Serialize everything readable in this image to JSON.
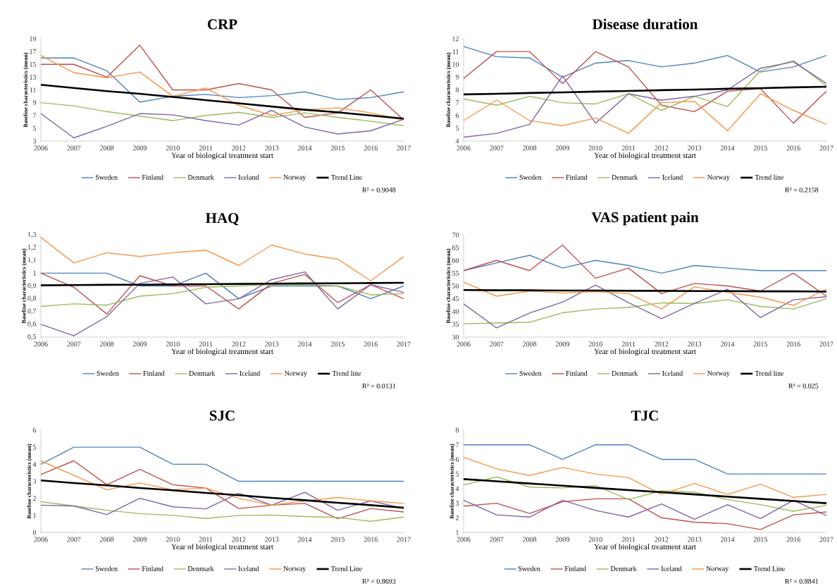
{
  "chart_data": [
    {
      "type": "line",
      "title": "CRP",
      "xlabel": "Year of biological treatment start",
      "ylabel": "Baseline characteristics (mean)",
      "x": [
        2006,
        2007,
        2008,
        2009,
        2010,
        2011,
        2012,
        2013,
        2014,
        2015,
        2016,
        2017
      ],
      "xlim": [
        2006,
        2017
      ],
      "xticks": [
        2006,
        2007,
        2008,
        2009,
        2010,
        2011,
        2012,
        2013,
        2014,
        2015,
        2016,
        2017
      ],
      "ylim": [
        3,
        19
      ],
      "yticks": [
        3,
        5,
        7,
        9,
        11,
        13,
        15,
        17,
        19
      ],
      "legend": "bottom",
      "annotations": [
        "R² = 0.9048"
      ],
      "series": [
        {
          "name": "Sweden",
          "color": "#4f81bd",
          "values": [
            16,
            16,
            14,
            9.1,
            10,
            10.3,
            9.8,
            10.1,
            10.7,
            9.5,
            9.8,
            10.7
          ]
        },
        {
          "name": "Finland",
          "color": "#c0504d",
          "values": [
            15,
            15,
            13,
            18,
            11,
            11,
            12,
            11,
            6.7,
            7.4,
            11,
            6.3
          ]
        },
        {
          "name": "Denmark",
          "color": "#9bbb59",
          "values": [
            9,
            8.5,
            7.6,
            6.9,
            6.2,
            7,
            7.5,
            6.7,
            7.4,
            6.7,
            6.1,
            5.4
          ]
        },
        {
          "name": "Iceland",
          "color": "#8064a2",
          "values": [
            7.3,
            3.5,
            5.3,
            7.3,
            7.1,
            6.2,
            5.5,
            7.8,
            5.2,
            4.1,
            4.6,
            6.4
          ]
        },
        {
          "name": "Norway",
          "color": "#f79646",
          "values": [
            16.4,
            13.7,
            12.9,
            13.8,
            10,
            11.3,
            8.6,
            7,
            7.9,
            8.2,
            7.4,
            6.3
          ]
        },
        {
          "name": "Trend Line",
          "type": "line",
          "color": "#000000",
          "x": [
            2006,
            2007,
            2008,
            2009,
            2010,
            2011,
            2012,
            2013,
            2014,
            2015,
            2016,
            2017
          ],
          "values": [
            11.8,
            11.3,
            10.8,
            10.4,
            9.9,
            9.4,
            8.9,
            8.4,
            7.9,
            7.5,
            7.0,
            6.5
          ]
        }
      ]
    },
    {
      "type": "line",
      "title": "Disease duration",
      "xlabel": "Year of biological treatment start",
      "ylabel": "Baseline characteristics (mean)",
      "x": [
        2006,
        2007,
        2008,
        2009,
        2010,
        2011,
        2012,
        2013,
        2014,
        2015,
        2016,
        2017
      ],
      "xlim": [
        2006,
        2017
      ],
      "xticks": [
        2006,
        2007,
        2008,
        2009,
        2010,
        2011,
        2012,
        2013,
        2014,
        2015,
        2016,
        2017
      ],
      "ylim": [
        4,
        12
      ],
      "yticks": [
        4,
        5,
        6,
        7,
        8,
        9,
        10,
        11,
        12
      ],
      "legend": "bottom",
      "annotations": [
        "R² = 0.2158"
      ],
      "series": [
        {
          "name": "Sweden",
          "color": "#4f81bd",
          "values": [
            11.4,
            10.6,
            10.5,
            9,
            10.1,
            10.3,
            9.8,
            10.1,
            10.7,
            9.4,
            9.8,
            10.7
          ]
        },
        {
          "name": "Finland",
          "color": "#c0504d",
          "values": [
            8.9,
            11,
            11,
            8.5,
            11,
            9.8,
            6.8,
            6.3,
            7.9,
            8.1,
            5.4,
            7.9
          ]
        },
        {
          "name": "Denmark",
          "color": "#9bbb59",
          "values": [
            7.3,
            6.8,
            7.5,
            7,
            6.9,
            7.7,
            6.4,
            7.5,
            6.7,
            9.5,
            10.3,
            8.3
          ]
        },
        {
          "name": "Iceland",
          "color": "#8064a2",
          "values": [
            4.3,
            4.6,
            5.3,
            9.1,
            5.4,
            7.7,
            7.2,
            7.5,
            8,
            9.7,
            10.2,
            8.5
          ]
        },
        {
          "name": "Norway",
          "color": "#f79646",
          "values": [
            5.6,
            7.2,
            5.6,
            5.2,
            5.8,
            4.6,
            7,
            7.1,
            4.8,
            7.7,
            6.4,
            5.3
          ]
        },
        {
          "name": "Trend line",
          "type": "line",
          "color": "#000000",
          "x": [
            2006,
            2007,
            2008,
            2009,
            2010,
            2011,
            2012,
            2013,
            2014,
            2015,
            2016,
            2017
          ],
          "values": [
            7.65,
            7.7,
            7.76,
            7.81,
            7.87,
            7.92,
            7.98,
            8.03,
            8.09,
            8.14,
            8.2,
            8.25
          ]
        }
      ]
    },
    {
      "type": "line",
      "title": "HAQ",
      "xlabel": "Year of biological treatment start",
      "ylabel": "Baseline characteristics (mean)",
      "x": [
        2006,
        2007,
        2008,
        2009,
        2010,
        2011,
        2012,
        2013,
        2014,
        2015,
        2016,
        2017
      ],
      "xlim": [
        2006,
        2017
      ],
      "xticks": [
        2006,
        2007,
        2008,
        2009,
        2010,
        2011,
        2012,
        2013,
        2014,
        2015,
        2016,
        2017
      ],
      "ylim": [
        0.5,
        1.3
      ],
      "yticks": [
        {
          "value": 0.5,
          "label": "0,5"
        },
        {
          "value": 0.6,
          "label": "0,6"
        },
        {
          "value": 0.7,
          "label": "0,7"
        },
        {
          "value": 0.8,
          "label": "0,8"
        },
        {
          "value": 0.9,
          "label": "0,9"
        },
        1,
        {
          "value": 1.1,
          "label": "1,1"
        },
        {
          "value": 1.2,
          "label": "1,2"
        },
        {
          "value": 1.3,
          "label": "1,3"
        }
      ],
      "legend": "bottom",
      "annotations": [
        "R² = 0.0131"
      ],
      "series": [
        {
          "name": "Sweden",
          "color": "#4f81bd",
          "values": [
            1,
            1,
            1,
            0.9,
            0.9,
            1,
            0.8,
            0.9,
            0.9,
            0.9,
            0.8,
            0.9
          ]
        },
        {
          "name": "Finland",
          "color": "#c0504d",
          "values": [
            1,
            0.89,
            0.68,
            0.98,
            0.9,
            0.9,
            0.72,
            0.92,
            0.99,
            0.77,
            0.91,
            0.8
          ]
        },
        {
          "name": "Denmark",
          "color": "#9bbb59",
          "values": [
            0.74,
            0.76,
            0.75,
            0.82,
            0.84,
            0.89,
            0.9,
            0.91,
            0.91,
            0.9,
            0.83,
            0.84
          ]
        },
        {
          "name": "Iceland",
          "color": "#8064a2",
          "values": [
            0.6,
            0.51,
            0.66,
            0.92,
            0.97,
            0.76,
            0.8,
            0.95,
            1.01,
            0.72,
            0.91,
            0.85
          ]
        },
        {
          "name": "Norway",
          "color": "#f79646",
          "values": [
            1.28,
            1.08,
            1.16,
            1.13,
            1.16,
            1.18,
            1.06,
            1.22,
            1.15,
            1.11,
            0.94,
            1.13
          ]
        },
        {
          "name": "Trend line",
          "type": "line",
          "color": "#000000",
          "x": [
            2006,
            2007,
            2008,
            2009,
            2010,
            2011,
            2012,
            2013,
            2014,
            2015,
            2016,
            2017
          ],
          "values": [
            0.905,
            0.907,
            0.909,
            0.91,
            0.912,
            0.914,
            0.916,
            0.918,
            0.92,
            0.921,
            0.923,
            0.925
          ]
        }
      ]
    },
    {
      "type": "line",
      "title": "VAS patient pain",
      "xlabel": "Year of biological treatment start",
      "ylabel": "Baseline characteristics (mean)",
      "x": [
        2006,
        2007,
        2008,
        2009,
        2010,
        2011,
        2012,
        2013,
        2014,
        2015,
        2016,
        2017
      ],
      "xlim": [
        2006,
        2017
      ],
      "xticks": [
        2006,
        2007,
        2008,
        2009,
        2010,
        2011,
        2012,
        2013,
        2014,
        2015,
        2016,
        2017
      ],
      "ylim": [
        30,
        70
      ],
      "yticks": [
        30,
        35,
        40,
        45,
        50,
        55,
        60,
        65,
        70
      ],
      "legend": "bottom",
      "annotations": [
        "R² = 0.025"
      ],
      "series": [
        {
          "name": "Sweden",
          "color": "#4f81bd",
          "values": [
            56,
            59,
            62,
            57,
            60,
            58,
            55,
            58,
            57,
            56,
            56,
            56
          ]
        },
        {
          "name": "Finland",
          "color": "#c0504d",
          "values": [
            56,
            60,
            56,
            66,
            53,
            57,
            47,
            51,
            50,
            48,
            55,
            46
          ]
        },
        {
          "name": "Denmark",
          "color": "#9bbb59",
          "values": [
            35.2,
            35.5,
            35.8,
            39.5,
            41,
            41.6,
            43.4,
            43.1,
            44.6,
            42,
            41,
            45
          ]
        },
        {
          "name": "Iceland",
          "color": "#8064a2",
          "values": [
            43,
            33.6,
            39.4,
            43.7,
            50.3,
            43.5,
            37.2,
            43.2,
            48.7,
            37.6,
            44.6,
            45.8
          ]
        },
        {
          "name": "Norway",
          "color": "#f79646",
          "values": [
            51.5,
            46,
            48,
            47.2,
            47.8,
            47,
            41,
            49.7,
            47.5,
            45.6,
            42.4,
            48.8
          ]
        },
        {
          "name": "Trend line",
          "type": "line",
          "color": "#000000",
          "x": [
            2006,
            2007,
            2008,
            2009,
            2010,
            2011,
            2012,
            2013,
            2014,
            2015,
            2016,
            2017
          ],
          "values": [
            48.4,
            48.3,
            48.3,
            48.2,
            48.2,
            48.1,
            48.1,
            48.0,
            48.0,
            47.9,
            47.9,
            47.8
          ]
        }
      ]
    },
    {
      "type": "line",
      "title": "SJC",
      "xlabel": "Year of biological treatment start",
      "ylabel": "Baseline characteristics (mean)",
      "x": [
        2006,
        2007,
        2008,
        2009,
        2010,
        2011,
        2012,
        2013,
        2014,
        2015,
        2016,
        2017
      ],
      "xlim": [
        2006,
        2017
      ],
      "xticks": [
        2006,
        2007,
        2008,
        2009,
        2010,
        2011,
        2012,
        2013,
        2014,
        2015,
        2016,
        2017
      ],
      "ylim": [
        0,
        6
      ],
      "yticks": [
        0,
        1,
        2,
        3,
        4,
        5,
        6
      ],
      "legend": "bottom",
      "annotations": [
        "R² = 0.8693"
      ],
      "series": [
        {
          "name": "Sweden",
          "color": "#4f81bd",
          "values": [
            4,
            5,
            5,
            5,
            4,
            4,
            3,
            3,
            3,
            3,
            3,
            3
          ]
        },
        {
          "name": "Finland",
          "color": "#c0504d",
          "values": [
            3.4,
            4.2,
            2.8,
            3.7,
            2.8,
            2.6,
            1.4,
            1.6,
            1.7,
            0.8,
            1.4,
            1.2
          ]
        },
        {
          "name": "Denmark",
          "color": "#9bbb59",
          "values": [
            1.8,
            1.55,
            1.3,
            1.1,
            1,
            0.82,
            1,
            1.02,
            0.93,
            0.88,
            0.65,
            0.9
          ]
        },
        {
          "name": "Iceland",
          "color": "#8064a2",
          "values": [
            1.6,
            1.55,
            1.05,
            2,
            1.5,
            1.38,
            2.3,
            1.6,
            2.35,
            1.3,
            1.85,
            1.4
          ]
        },
        {
          "name": "Norway",
          "color": "#f79646",
          "values": [
            4.2,
            3.35,
            2.5,
            2.9,
            2.5,
            2.6,
            2,
            1.6,
            1.85,
            2.05,
            1.85,
            1.7
          ]
        },
        {
          "name": "Trend Line",
          "type": "line",
          "color": "#000000",
          "x": [
            2006,
            2007,
            2008,
            2009,
            2010,
            2011,
            2012,
            2013,
            2014,
            2015,
            2016,
            2017
          ],
          "values": [
            3.05,
            2.9,
            2.76,
            2.61,
            2.47,
            2.32,
            2.18,
            2.03,
            1.89,
            1.74,
            1.6,
            1.45
          ]
        }
      ]
    },
    {
      "type": "line",
      "title": "TJC",
      "xlabel": "Year of biological treatment start",
      "ylabel": "Baseline characteristics (mean)",
      "x": [
        2006,
        2007,
        2008,
        2009,
        2010,
        2011,
        2012,
        2013,
        2014,
        2015,
        2016,
        2017
      ],
      "xlim": [
        2006,
        2017
      ],
      "xticks": [
        2006,
        2007,
        2008,
        2009,
        2010,
        2011,
        2012,
        2013,
        2014,
        2015,
        2016,
        2017
      ],
      "ylim": [
        1,
        8
      ],
      "yticks": [
        1,
        2,
        3,
        4,
        5,
        6,
        7,
        8
      ],
      "legend": "bottom",
      "annotations": [
        "R² = 0.8841"
      ],
      "series": [
        {
          "name": "Sweden",
          "color": "#4f81bd",
          "values": [
            7,
            7,
            7,
            6,
            7,
            7,
            6,
            6,
            5,
            5,
            5,
            5
          ]
        },
        {
          "name": "Finland",
          "color": "#c0504d",
          "values": [
            2.8,
            3,
            2.3,
            3.1,
            3.3,
            3.3,
            2,
            1.7,
            1.6,
            1.2,
            2.2,
            2.4
          ]
        },
        {
          "name": "Denmark",
          "color": "#9bbb59",
          "values": [
            4.25,
            4.8,
            4.1,
            4.05,
            4.2,
            3.25,
            3.85,
            3.75,
            3.25,
            2.9,
            2.45,
            2.85
          ]
        },
        {
          "name": "Iceland",
          "color": "#8064a2",
          "values": [
            3.2,
            2.2,
            2.05,
            3.2,
            2.5,
            2.05,
            2.95,
            1.9,
            2.9,
            1.95,
            3.2,
            2.15
          ]
        },
        {
          "name": "Norway",
          "color": "#f79646",
          "values": [
            6.15,
            5.35,
            4.9,
            5.45,
            5,
            4.75,
            3.6,
            4.35,
            3.6,
            4.3,
            3.4,
            3.6
          ]
        },
        {
          "name": "Trend Line",
          "type": "line",
          "color": "#000000",
          "x": [
            2006,
            2007,
            2008,
            2009,
            2010,
            2011,
            2012,
            2013,
            2014,
            2015,
            2016,
            2017
          ],
          "values": [
            4.65,
            4.5,
            4.35,
            4.2,
            4.05,
            3.9,
            3.75,
            3.6,
            3.45,
            3.3,
            3.15,
            3.0
          ]
        }
      ]
    }
  ]
}
